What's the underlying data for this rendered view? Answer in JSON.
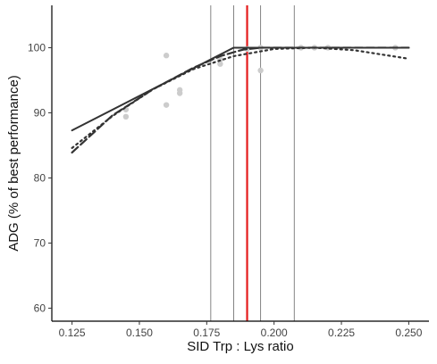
{
  "chart_data": {
    "type": "line",
    "title": "",
    "xlabel": "SID Trp : Lys ratio",
    "ylabel": "ADG (% of best performance)",
    "xlim": [
      0.1175,
      0.2575
    ],
    "ylim": [
      58,
      106.5
    ],
    "x_ticks": [
      0.125,
      0.15,
      0.175,
      0.2,
      0.225,
      0.25
    ],
    "x_tick_labels": [
      "0.125",
      "0.150",
      "0.175",
      "0.200",
      "0.225",
      "0.250"
    ],
    "y_ticks": [
      60,
      70,
      80,
      90,
      100
    ],
    "y_tick_labels": [
      "60",
      "70",
      "80",
      "90",
      "100"
    ],
    "grid": false,
    "points": [
      {
        "x": 0.145,
        "y": 89.4
      },
      {
        "x": 0.145,
        "y": 90.5
      },
      {
        "x": 0.16,
        "y": 91.2
      },
      {
        "x": 0.16,
        "y": 98.8
      },
      {
        "x": 0.165,
        "y": 93.0
      },
      {
        "x": 0.165,
        "y": 93.5
      },
      {
        "x": 0.18,
        "y": 97.5
      },
      {
        "x": 0.18,
        "y": 98.2
      },
      {
        "x": 0.19,
        "y": 99.8
      },
      {
        "x": 0.195,
        "y": 96.5
      },
      {
        "x": 0.195,
        "y": 100.0
      },
      {
        "x": 0.21,
        "y": 100.0
      },
      {
        "x": 0.215,
        "y": 100.0
      },
      {
        "x": 0.22,
        "y": 100.0
      },
      {
        "x": 0.245,
        "y": 100.0
      }
    ],
    "series": [
      {
        "style": "solid",
        "x": [
          0.125,
          0.185,
          0.25
        ],
        "y": [
          87.3,
          100.0,
          100.0
        ]
      },
      {
        "style": "dashed",
        "x": [
          0.125,
          0.14,
          0.155,
          0.17,
          0.18,
          0.185,
          0.1885,
          0.195,
          0.25
        ],
        "y": [
          83.9,
          89.6,
          93.6,
          96.9,
          98.7,
          99.3,
          99.7,
          100.0,
          100.0
        ]
      },
      {
        "style": "dotted",
        "x": [
          0.125,
          0.14,
          0.155,
          0.17,
          0.185,
          0.2,
          0.215,
          0.23,
          0.25
        ],
        "y": [
          84.6,
          89.5,
          93.6,
          96.7,
          98.7,
          99.8,
          100.0,
          99.6,
          98.3
        ]
      }
    ],
    "vlines": [
      {
        "x": 0.1765,
        "color": "#777777"
      },
      {
        "x": 0.185,
        "color": "#777777"
      },
      {
        "x": 0.19,
        "color": "#e41a1c"
      },
      {
        "x": 0.195,
        "color": "#777777"
      },
      {
        "x": 0.2075,
        "color": "#777777"
      }
    ],
    "colors": {
      "line": "#333333",
      "point": "#cccccc",
      "highlight": "#e41a1c",
      "reference": "#777777"
    }
  }
}
